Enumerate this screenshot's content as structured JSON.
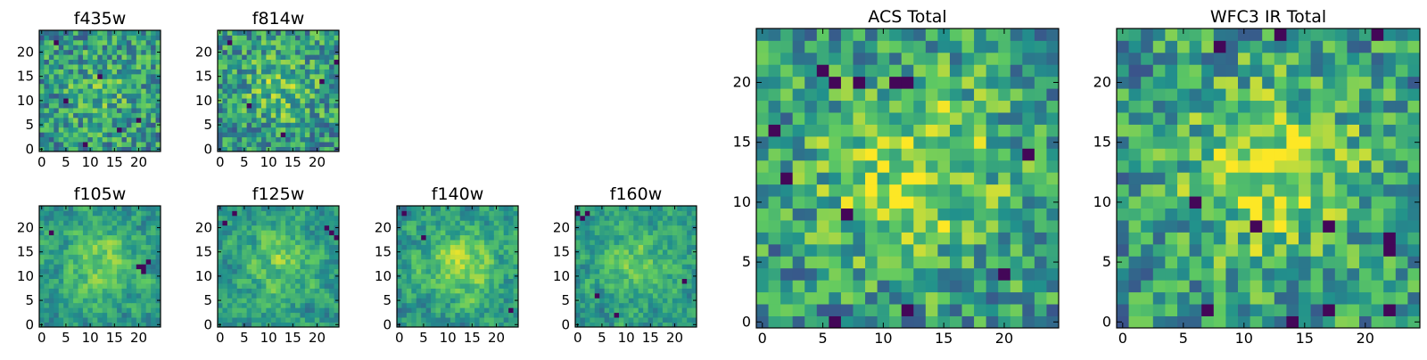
{
  "figure": {
    "description_colormap": "viridis"
  },
  "colormap": {
    "name": "viridis",
    "stops": [
      "#440154",
      "#3b528b",
      "#21918c",
      "#5ec962",
      "#fde725"
    ]
  },
  "chart_data": [
    {
      "type": "heatmap",
      "title": "f435w",
      "grid_size": 25,
      "xlim": [
        -0.5,
        24.5
      ],
      "ylim": [
        -0.5,
        24.5
      ],
      "xticks": [
        0,
        5,
        10,
        15,
        20
      ],
      "yticks": [
        0,
        5,
        10,
        15,
        20
      ],
      "xtick_labels": [
        "0",
        "5",
        "10",
        "15",
        "20"
      ],
      "ytick_labels": [
        "0",
        "5",
        "10",
        "15",
        "20"
      ],
      "value_range": [
        0,
        1
      ],
      "seed": 11,
      "smooth": 0,
      "center_boost": 0.12,
      "dark_cells": [
        [
          5,
          10
        ],
        [
          9,
          1
        ],
        [
          20,
          6
        ],
        [
          12,
          15
        ],
        [
          3,
          22
        ],
        [
          16,
          4
        ]
      ]
    },
    {
      "type": "heatmap",
      "title": "f814w",
      "grid_size": 25,
      "xlim": [
        -0.5,
        24.5
      ],
      "ylim": [
        -0.5,
        24.5
      ],
      "xticks": [
        0,
        5,
        10,
        15,
        20
      ],
      "yticks": [
        0,
        5,
        10,
        15,
        20
      ],
      "xtick_labels": [
        "0",
        "5",
        "10",
        "15",
        "20"
      ],
      "ytick_labels": [
        "0",
        "5",
        "10",
        "15",
        "20"
      ],
      "value_range": [
        0,
        1
      ],
      "seed": 23,
      "smooth": 0,
      "center_boost": 0.2,
      "dark_cells": [
        [
          2,
          22
        ],
        [
          24,
          18
        ],
        [
          21,
          14
        ],
        [
          6,
          9
        ],
        [
          13,
          3
        ]
      ]
    },
    {
      "type": "heatmap",
      "title": "f105w",
      "grid_size": 25,
      "xlim": [
        -0.5,
        24.5
      ],
      "ylim": [
        -0.5,
        24.5
      ],
      "xticks": [
        0,
        5,
        10,
        15,
        20
      ],
      "yticks": [
        0,
        5,
        10,
        15,
        20
      ],
      "xtick_labels": [
        "0",
        "5",
        "10",
        "15",
        "20"
      ],
      "ytick_labels": [
        "0",
        "5",
        "10",
        "15",
        "20"
      ],
      "value_range": [
        0,
        1
      ],
      "seed": 37,
      "smooth": 1,
      "center_boost": 0.25,
      "dark_cells": [
        [
          20,
          12
        ],
        [
          21,
          12
        ],
        [
          21,
          11
        ],
        [
          22,
          13
        ],
        [
          2,
          19
        ]
      ]
    },
    {
      "type": "heatmap",
      "title": "f125w",
      "grid_size": 25,
      "xlim": [
        -0.5,
        24.5
      ],
      "ylim": [
        -0.5,
        24.5
      ],
      "xticks": [
        0,
        5,
        10,
        15,
        20
      ],
      "yticks": [
        0,
        5,
        10,
        15,
        20
      ],
      "xtick_labels": [
        "0",
        "5",
        "10",
        "15",
        "20"
      ],
      "ytick_labels": [
        "0",
        "5",
        "10",
        "15",
        "20"
      ],
      "value_range": [
        0,
        1
      ],
      "seed": 41,
      "smooth": 1,
      "center_boost": 0.22,
      "dark_cells": [
        [
          3,
          23
        ],
        [
          22,
          20
        ],
        [
          23,
          19
        ],
        [
          24,
          18
        ],
        [
          1,
          21
        ]
      ]
    },
    {
      "type": "heatmap",
      "title": "f140w",
      "grid_size": 25,
      "xlim": [
        -0.5,
        24.5
      ],
      "ylim": [
        -0.5,
        24.5
      ],
      "xticks": [
        0,
        5,
        10,
        15,
        20
      ],
      "yticks": [
        0,
        5,
        10,
        15,
        20
      ],
      "xtick_labels": [
        "0",
        "5",
        "10",
        "15",
        "20"
      ],
      "ytick_labels": [
        "0",
        "5",
        "10",
        "15",
        "20"
      ],
      "value_range": [
        0,
        1
      ],
      "seed": 53,
      "smooth": 1,
      "center_boost": 0.3,
      "dark_cells": [
        [
          1,
          23
        ],
        [
          23,
          3
        ],
        [
          5,
          18
        ]
      ]
    },
    {
      "type": "heatmap",
      "title": "f160w",
      "grid_size": 25,
      "xlim": [
        -0.5,
        24.5
      ],
      "ylim": [
        -0.5,
        24.5
      ],
      "xticks": [
        0,
        5,
        10,
        15,
        20
      ],
      "yticks": [
        0,
        5,
        10,
        15,
        20
      ],
      "xtick_labels": [
        "0",
        "5",
        "10",
        "15",
        "20"
      ],
      "ytick_labels": [
        "0",
        "5",
        "10",
        "15",
        "20"
      ],
      "value_range": [
        0,
        1
      ],
      "seed": 67,
      "smooth": 1,
      "center_boost": 0.24,
      "dark_cells": [
        [
          0,
          23
        ],
        [
          1,
          22
        ],
        [
          2,
          23
        ],
        [
          4,
          6
        ],
        [
          8,
          2
        ],
        [
          22,
          9
        ]
      ]
    },
    {
      "type": "heatmap",
      "title": "ACS Total",
      "grid_size": 25,
      "xlim": [
        -0.5,
        24.5
      ],
      "ylim": [
        -0.5,
        24.5
      ],
      "xticks": [
        0,
        5,
        10,
        15,
        20
      ],
      "yticks": [
        0,
        5,
        10,
        15,
        20
      ],
      "xtick_labels": [
        "0",
        "5",
        "10",
        "15",
        "20"
      ],
      "ytick_labels": [
        "0",
        "5",
        "10",
        "15",
        "20"
      ],
      "value_range": [
        0,
        1
      ],
      "seed": 79,
      "smooth": 0,
      "center_boost": 0.35,
      "dark_cells": [
        [
          5,
          21
        ],
        [
          6,
          20
        ],
        [
          11,
          20
        ],
        [
          12,
          20
        ],
        [
          8,
          20
        ],
        [
          2,
          12
        ],
        [
          7,
          9
        ],
        [
          22,
          14
        ],
        [
          12,
          1
        ],
        [
          6,
          0
        ],
        [
          20,
          4
        ],
        [
          1,
          16
        ]
      ]
    },
    {
      "type": "heatmap",
      "title": "WFC3 IR Total",
      "grid_size": 25,
      "xlim": [
        -0.5,
        24.5
      ],
      "ylim": [
        -0.5,
        24.5
      ],
      "xticks": [
        0,
        5,
        10,
        15,
        20
      ],
      "yticks": [
        0,
        5,
        10,
        15,
        20
      ],
      "xtick_labels": [
        "0",
        "5",
        "10",
        "15",
        "20"
      ],
      "ytick_labels": [
        "0",
        "5",
        "10",
        "15",
        "20"
      ],
      "value_range": [
        0,
        1
      ],
      "seed": 97,
      "smooth": 0,
      "center_boost": 0.35,
      "dark_cells": [
        [
          13,
          24
        ],
        [
          8,
          23
        ],
        [
          21,
          24
        ],
        [
          6,
          10
        ],
        [
          17,
          8
        ],
        [
          22,
          6
        ],
        [
          22,
          7
        ],
        [
          11,
          8
        ],
        [
          7,
          1
        ],
        [
          14,
          0
        ],
        [
          17,
          1
        ],
        [
          22,
          1
        ]
      ]
    }
  ]
}
